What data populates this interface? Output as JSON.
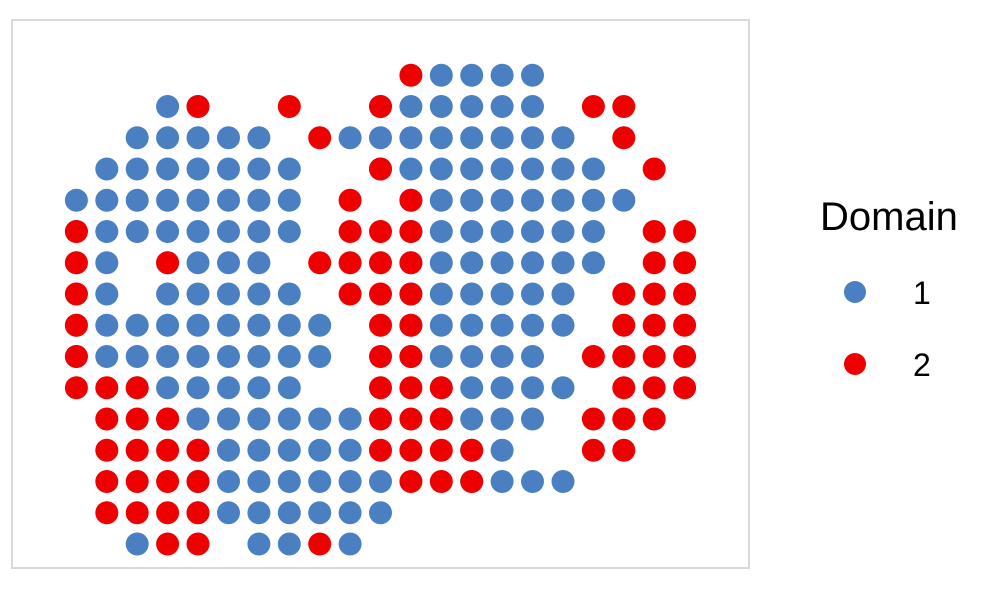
{
  "chart_data": {
    "type": "scatter",
    "title": "",
    "xlabel": "",
    "ylabel": "",
    "xlim": [
      0,
      22
    ],
    "ylim": [
      0,
      16
    ],
    "grid": false,
    "legend_position": "right",
    "legend": {
      "title": "Domain",
      "entries": [
        {
          "label": "1",
          "color": "#4A7FC1"
        },
        {
          "label": "2",
          "color": "#EE0000"
        }
      ]
    },
    "series": [
      {
        "name": "1",
        "color": "#4A7FC1",
        "points": [
          [
            13,
            15
          ],
          [
            14,
            15
          ],
          [
            15,
            15
          ],
          [
            16,
            15
          ],
          [
            4,
            14
          ],
          [
            5,
            14
          ],
          [
            11,
            14
          ],
          [
            12,
            14
          ],
          [
            13,
            14
          ],
          [
            14,
            14
          ],
          [
            15,
            14
          ],
          [
            16,
            14
          ],
          [
            3,
            13
          ],
          [
            4,
            13
          ],
          [
            5,
            13
          ],
          [
            6,
            13
          ],
          [
            7,
            13
          ],
          [
            10,
            13
          ],
          [
            11,
            13
          ],
          [
            12,
            13
          ],
          [
            13,
            13
          ],
          [
            14,
            13
          ],
          [
            15,
            13
          ],
          [
            16,
            13
          ],
          [
            17,
            13
          ],
          [
            2,
            12
          ],
          [
            3,
            12
          ],
          [
            4,
            12
          ],
          [
            5,
            12
          ],
          [
            6,
            12
          ],
          [
            7,
            12
          ],
          [
            8,
            12
          ],
          [
            11,
            12
          ],
          [
            12,
            12
          ],
          [
            13,
            12
          ],
          [
            14,
            12
          ],
          [
            15,
            12
          ],
          [
            16,
            12
          ],
          [
            17,
            12
          ],
          [
            18,
            12
          ],
          [
            1,
            11
          ],
          [
            2,
            11
          ],
          [
            3,
            11
          ],
          [
            4,
            11
          ],
          [
            5,
            11
          ],
          [
            6,
            11
          ],
          [
            7,
            11
          ],
          [
            8,
            11
          ],
          [
            12,
            11
          ],
          [
            13,
            11
          ],
          [
            14,
            11
          ],
          [
            15,
            11
          ],
          [
            16,
            11
          ],
          [
            17,
            11
          ],
          [
            18,
            11
          ],
          [
            19,
            11
          ],
          [
            1,
            10
          ],
          [
            2,
            10
          ],
          [
            3,
            10
          ],
          [
            4,
            10
          ],
          [
            5,
            10
          ],
          [
            6,
            10
          ],
          [
            7,
            10
          ],
          [
            8,
            10
          ],
          [
            12,
            10
          ],
          [
            13,
            10
          ],
          [
            14,
            10
          ],
          [
            15,
            10
          ],
          [
            16,
            10
          ],
          [
            17,
            10
          ],
          [
            18,
            10
          ],
          [
            1,
            9
          ],
          [
            2,
            9
          ],
          [
            4,
            9
          ],
          [
            5,
            9
          ],
          [
            6,
            9
          ],
          [
            7,
            9
          ],
          [
            12,
            9
          ],
          [
            13,
            9
          ],
          [
            14,
            9
          ],
          [
            15,
            9
          ],
          [
            16,
            9
          ],
          [
            17,
            9
          ],
          [
            18,
            9
          ],
          [
            1,
            8
          ],
          [
            2,
            8
          ],
          [
            4,
            8
          ],
          [
            5,
            8
          ],
          [
            6,
            8
          ],
          [
            7,
            8
          ],
          [
            8,
            8
          ],
          [
            12,
            8
          ],
          [
            13,
            8
          ],
          [
            14,
            8
          ],
          [
            15,
            8
          ],
          [
            16,
            8
          ],
          [
            17,
            8
          ],
          [
            1,
            7
          ],
          [
            2,
            7
          ],
          [
            3,
            7
          ],
          [
            4,
            7
          ],
          [
            5,
            7
          ],
          [
            6,
            7
          ],
          [
            7,
            7
          ],
          [
            8,
            7
          ],
          [
            9,
            7
          ],
          [
            12,
            7
          ],
          [
            13,
            7
          ],
          [
            14,
            7
          ],
          [
            15,
            7
          ],
          [
            16,
            7
          ],
          [
            17,
            7
          ],
          [
            1,
            6
          ],
          [
            2,
            6
          ],
          [
            3,
            6
          ],
          [
            4,
            6
          ],
          [
            5,
            6
          ],
          [
            6,
            6
          ],
          [
            7,
            6
          ],
          [
            8,
            6
          ],
          [
            9,
            6
          ],
          [
            12,
            6
          ],
          [
            13,
            6
          ],
          [
            14,
            6
          ],
          [
            15,
            6
          ],
          [
            16,
            6
          ],
          [
            3,
            5
          ],
          [
            4,
            5
          ],
          [
            5,
            5
          ],
          [
            6,
            5
          ],
          [
            7,
            5
          ],
          [
            8,
            5
          ],
          [
            13,
            5
          ],
          [
            14,
            5
          ],
          [
            15,
            5
          ],
          [
            16,
            5
          ],
          [
            17,
            5
          ],
          [
            4,
            4
          ],
          [
            5,
            4
          ],
          [
            6,
            4
          ],
          [
            7,
            4
          ],
          [
            8,
            4
          ],
          [
            9,
            4
          ],
          [
            10,
            4
          ],
          [
            13,
            4
          ],
          [
            14,
            4
          ],
          [
            15,
            4
          ],
          [
            16,
            4
          ],
          [
            5,
            3
          ],
          [
            6,
            3
          ],
          [
            7,
            3
          ],
          [
            8,
            3
          ],
          [
            9,
            3
          ],
          [
            10,
            3
          ],
          [
            14,
            3
          ],
          [
            15,
            3
          ],
          [
            5,
            2
          ],
          [
            6,
            2
          ],
          [
            7,
            2
          ],
          [
            8,
            2
          ],
          [
            9,
            2
          ],
          [
            10,
            2
          ],
          [
            11,
            2
          ],
          [
            14,
            2
          ],
          [
            15,
            2
          ],
          [
            16,
            2
          ],
          [
            17,
            2
          ],
          [
            5,
            1
          ],
          [
            6,
            1
          ],
          [
            7,
            1
          ],
          [
            8,
            1
          ],
          [
            9,
            1
          ],
          [
            10,
            1
          ],
          [
            11,
            1
          ],
          [
            3,
            0
          ],
          [
            7,
            0
          ],
          [
            8,
            0
          ],
          [
            10,
            0
          ]
        ]
      },
      {
        "name": "2",
        "color": "#EE0000",
        "points": [
          [
            12,
            15
          ],
          [
            5,
            14
          ],
          [
            8,
            14
          ],
          [
            11,
            14
          ],
          [
            18,
            14
          ],
          [
            19,
            14
          ],
          [
            9,
            13
          ],
          [
            19,
            13
          ],
          [
            11,
            12
          ],
          [
            20,
            12
          ],
          [
            10,
            11
          ],
          [
            12,
            11
          ],
          [
            1,
            10
          ],
          [
            10,
            10
          ],
          [
            11,
            10
          ],
          [
            12,
            10
          ],
          [
            20,
            10
          ],
          [
            21,
            10
          ],
          [
            1,
            9
          ],
          [
            4,
            9
          ],
          [
            9,
            9
          ],
          [
            10,
            9
          ],
          [
            11,
            9
          ],
          [
            12,
            9
          ],
          [
            20,
            9
          ],
          [
            21,
            9
          ],
          [
            1,
            8
          ],
          [
            10,
            8
          ],
          [
            11,
            8
          ],
          [
            12,
            8
          ],
          [
            19,
            8
          ],
          [
            20,
            8
          ],
          [
            21,
            8
          ],
          [
            1,
            7
          ],
          [
            11,
            7
          ],
          [
            12,
            7
          ],
          [
            19,
            7
          ],
          [
            20,
            7
          ],
          [
            21,
            7
          ],
          [
            1,
            6
          ],
          [
            11,
            6
          ],
          [
            12,
            6
          ],
          [
            18,
            6
          ],
          [
            19,
            6
          ],
          [
            20,
            6
          ],
          [
            21,
            6
          ],
          [
            1,
            5
          ],
          [
            2,
            5
          ],
          [
            3,
            5
          ],
          [
            11,
            5
          ],
          [
            12,
            5
          ],
          [
            13,
            5
          ],
          [
            19,
            5
          ],
          [
            20,
            5
          ],
          [
            21,
            5
          ],
          [
            2,
            4
          ],
          [
            3,
            4
          ],
          [
            4,
            4
          ],
          [
            11,
            4
          ],
          [
            12,
            4
          ],
          [
            13,
            4
          ],
          [
            18,
            4
          ],
          [
            19,
            4
          ],
          [
            20,
            4
          ],
          [
            2,
            3
          ],
          [
            3,
            3
          ],
          [
            4,
            3
          ],
          [
            5,
            3
          ],
          [
            11,
            3
          ],
          [
            12,
            3
          ],
          [
            13,
            3
          ],
          [
            14,
            3
          ],
          [
            18,
            3
          ],
          [
            19,
            3
          ],
          [
            2,
            2
          ],
          [
            3,
            2
          ],
          [
            4,
            2
          ],
          [
            5,
            2
          ],
          [
            12,
            2
          ],
          [
            13,
            2
          ],
          [
            14,
            2
          ],
          [
            2,
            1
          ],
          [
            3,
            1
          ],
          [
            4,
            1
          ],
          [
            5,
            1
          ],
          [
            4,
            0
          ],
          [
            5,
            0
          ],
          [
            9,
            0
          ]
        ]
      }
    ]
  }
}
